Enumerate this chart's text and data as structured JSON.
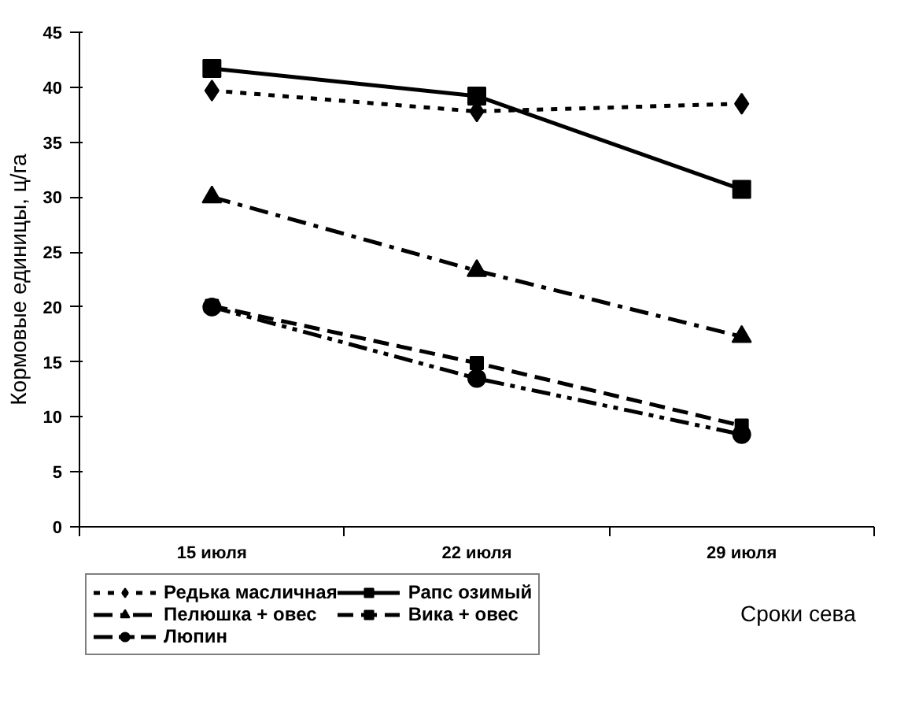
{
  "chart_data": {
    "type": "line",
    "ylabel": "Кормовые единицы, ц/га",
    "xlabel": "Сроки сева",
    "categories": [
      "15 июля",
      "22 июля",
      "29 июля"
    ],
    "ylim": [
      0,
      45
    ],
    "yticks": [
      0,
      5,
      10,
      15,
      20,
      25,
      30,
      35,
      40,
      45
    ],
    "grid": false,
    "legend": "bottom",
    "series": [
      {
        "name": "Редька масличная",
        "color": "#000000",
        "marker": "diamond",
        "line_style": "dotted",
        "values": [
          39.7,
          37.8,
          38.5
        ]
      },
      {
        "name": "Рапс озимый",
        "color": "#000000",
        "marker": "square",
        "line_style": "solid",
        "values": [
          41.7,
          39.2,
          30.7
        ]
      },
      {
        "name": "Пелюшка + овес",
        "color": "#000000",
        "marker": "triangle",
        "line_style": "dashdot",
        "values": [
          30.0,
          23.3,
          17.3
        ]
      },
      {
        "name": "Вика + овес",
        "color": "#000000",
        "marker": "square",
        "line_style": "dashed",
        "values": [
          20.1,
          14.9,
          9.2
        ]
      },
      {
        "name": "Люпин",
        "color": "#000000",
        "marker": "circle",
        "line_style": "dashdotdot",
        "values": [
          20.0,
          13.5,
          8.4
        ]
      }
    ]
  }
}
